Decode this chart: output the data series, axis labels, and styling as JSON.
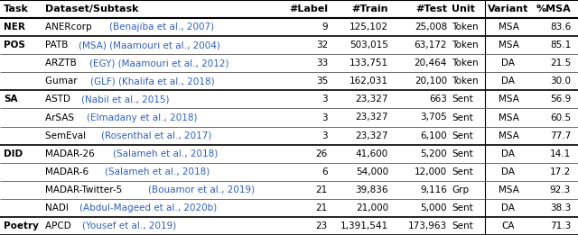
{
  "col_headers": [
    "Task",
    "Dataset/Subtask",
    "#Label",
    "#Train",
    "#Test",
    "Unit",
    "Variant",
    "%MSA"
  ],
  "rows": [
    [
      "NER",
      "ANERcorp (Benajiba et al., 2007)",
      "9",
      "125,102",
      "25,008",
      "Token",
      "MSA",
      "83.6"
    ],
    [
      "POS",
      "PATB (MSA) (Maamouri et al., 2004)",
      "32",
      "503,015",
      "63,172",
      "Token",
      "MSA",
      "85.1"
    ],
    [
      "",
      "ARZTB (EGY) (Maamouri et al., 2012)",
      "33",
      "133,751",
      "20,464",
      "Token",
      "DA",
      "21.5"
    ],
    [
      "",
      "Gumar (GLF) (Khalifa et al., 2018)",
      "35",
      "162,031",
      "20,100",
      "Token",
      "DA",
      "30.0"
    ],
    [
      "SA",
      "ASTD (Nabil et al., 2015)",
      "3",
      "23,327",
      "663",
      "Sent",
      "MSA",
      "56.9"
    ],
    [
      "",
      "ArSAS (Elmadany et al., 2018)",
      "3",
      "23,327",
      "3,705",
      "Sent",
      "MSA",
      "60.5"
    ],
    [
      "",
      "SemEval (Rosenthal et al., 2017)",
      "3",
      "23,327",
      "6,100",
      "Sent",
      "MSA",
      "77.7"
    ],
    [
      "DID",
      "MADAR-26 (Salameh et al., 2018)",
      "26",
      "41,600",
      "5,200",
      "Sent",
      "DA",
      "14.1"
    ],
    [
      "",
      "MADAR-6 (Salameh et al., 2018)",
      "6",
      "54,000",
      "12,000",
      "Sent",
      "DA",
      "17.2"
    ],
    [
      "",
      "MADAR-Twitter-5 (Bouamor et al., 2019)",
      "21",
      "39,836",
      "9,116",
      "Grp",
      "MSA",
      "92.3"
    ],
    [
      "",
      "NADI (Abdul-Mageed et al., 2020b)",
      "21",
      "21,000",
      "5,000",
      "Sent",
      "DA",
      "38.3"
    ],
    [
      "Poetry",
      "APCD (Yousef et al., 2019)",
      "23",
      "1,391,541",
      "173,963",
      "Sent",
      "CA",
      "71.3"
    ]
  ],
  "link_color": "#3060C0",
  "text_color": "#000000",
  "bg_color": "#ffffff",
  "figsize": [
    6.4,
    2.61
  ],
  "dpi": 100,
  "header_fontsize": 8.0,
  "row_fontsize": 7.5,
  "thick_after_rows": [
    0,
    3,
    6,
    10,
    11
  ],
  "vline_after_col5": true
}
